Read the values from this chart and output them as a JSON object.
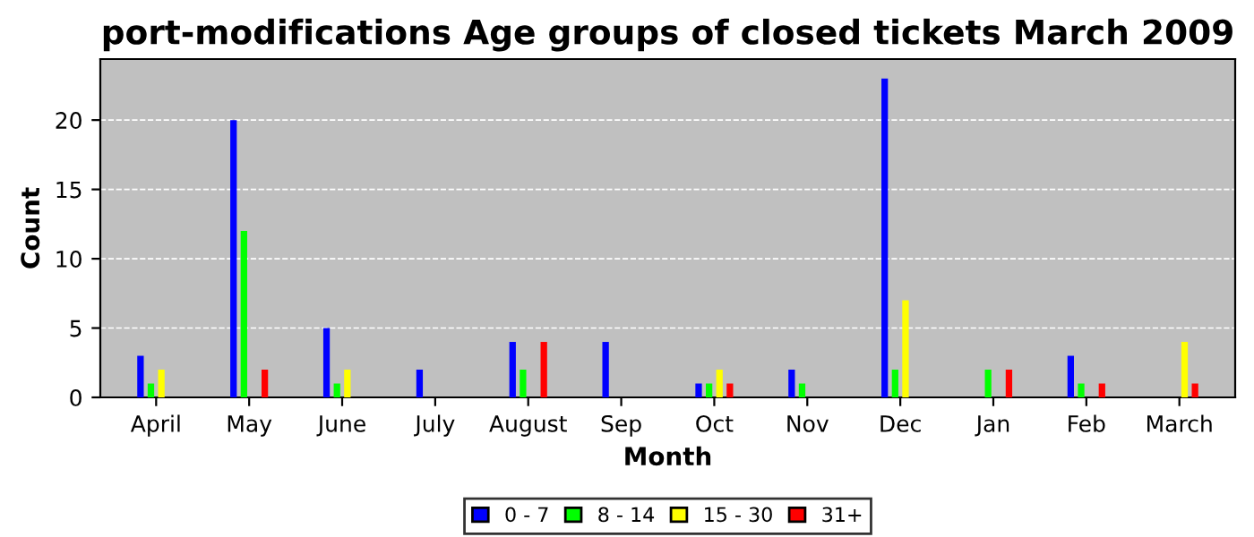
{
  "chart_data": {
    "type": "bar",
    "title": "port-modifications Age groups of closed tickets March 2009",
    "xlabel": "Month",
    "ylabel": "Count",
    "categories": [
      "April",
      "May",
      "June",
      "July",
      "August",
      "Sep",
      "Oct",
      "Nov",
      "Dec",
      "Jan",
      "Feb",
      "March"
    ],
    "series": [
      {
        "name": "0 - 7",
        "color": "#0000ff",
        "values": [
          3,
          20,
          5,
          2,
          4,
          4,
          1,
          2,
          23,
          0,
          3,
          0
        ]
      },
      {
        "name": "8 - 14",
        "color": "#00ff00",
        "values": [
          1,
          12,
          1,
          0,
          2,
          0,
          1,
          1,
          2,
          2,
          1,
          0
        ]
      },
      {
        "name": "15 - 30",
        "color": "#ffff00",
        "values": [
          2,
          0,
          2,
          0,
          0,
          0,
          2,
          0,
          7,
          0,
          0,
          4
        ]
      },
      {
        "name": "31+",
        "color": "#ff0000",
        "values": [
          0,
          2,
          0,
          0,
          4,
          0,
          1,
          0,
          0,
          2,
          1,
          1
        ]
      }
    ],
    "ylim": [
      0,
      24.4
    ],
    "yticks": [
      0,
      5,
      10,
      15,
      20
    ],
    "grid": "y",
    "legend": "bottom"
  }
}
